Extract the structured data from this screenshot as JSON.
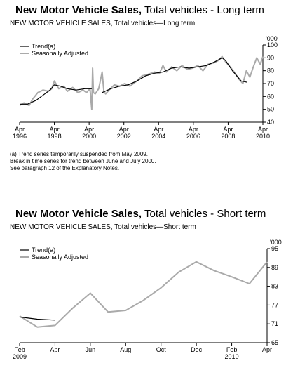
{
  "chart_data": [
    {
      "type": "line",
      "title_bold": "New Motor Vehicle Sales,",
      "title_rest": " Total vehicles - Long term",
      "subtitle": "NEW MOTOR VEHICLE SALES, Total vehicles—Long term",
      "y_unit": "'000",
      "ylim": [
        40,
        100
      ],
      "yticks": [
        40,
        50,
        60,
        70,
        80,
        90,
        100
      ],
      "xlim": [
        1996.25,
        2010.25
      ],
      "xticks": [
        {
          "x": 1996.25,
          "l1": "Apr",
          "l2": "1996"
        },
        {
          "x": 1998.25,
          "l1": "Apr",
          "l2": "1998"
        },
        {
          "x": 2000.25,
          "l1": "Apr",
          "l2": "2000"
        },
        {
          "x": 2002.25,
          "l1": "Apr",
          "l2": "2002"
        },
        {
          "x": 2004.25,
          "l1": "Apr",
          "l2": "2004"
        },
        {
          "x": 2006.25,
          "l1": "Apr",
          "l2": "2006"
        },
        {
          "x": 2008.25,
          "l1": "Apr",
          "l2": "2008"
        },
        {
          "x": 2010.25,
          "l1": "Apr",
          "l2": "2010"
        }
      ],
      "legend": [
        "Trend(a)",
        "Seasonally Adjusted"
      ],
      "colors": {
        "trend": "#000000",
        "seasonal": "#aaaaaa"
      },
      "series": [
        {
          "name": "Trend(a)",
          "x": [
            1996.25,
            1996.7,
            1997.2,
            1997.7,
            1998.0,
            1998.25,
            1998.6,
            1999.0,
            1999.5,
            2000.0,
            2000.4,
            2000.55,
            2001.0,
            2001.5,
            2002.0,
            2002.5,
            2003.0,
            2003.5,
            2004.0,
            2004.5,
            2005.0,
            2005.5,
            2006.0,
            2006.5,
            2007.0,
            2007.5,
            2007.9,
            2008.1,
            2008.5,
            2009.0,
            2009.35
          ],
          "y": [
            54,
            54,
            57,
            62,
            65,
            69,
            68,
            66,
            65,
            66,
            66,
            null,
            63,
            66,
            68,
            69,
            72,
            76,
            78,
            79,
            82,
            83,
            82,
            83,
            84,
            87,
            90,
            88,
            80,
            72,
            71
          ]
        },
        {
          "name": "Seasonally Adjusted",
          "x": [
            1996.25,
            1996.5,
            1996.8,
            1997.0,
            1997.3,
            1997.6,
            1997.9,
            1998.1,
            1998.25,
            1998.5,
            1998.8,
            1999.0,
            1999.3,
            1999.6,
            1999.9,
            2000.1,
            2000.3,
            2000.4,
            2000.45,
            2000.5,
            2000.6,
            2000.8,
            2001.0,
            2001.1,
            2001.2,
            2001.4,
            2001.7,
            2002.0,
            2002.3,
            2002.6,
            2003.0,
            2003.3,
            2003.6,
            2004.0,
            2004.3,
            2004.5,
            2004.7,
            2005.0,
            2005.3,
            2005.6,
            2005.9,
            2006.2,
            2006.5,
            2006.8,
            2007.1,
            2007.4,
            2007.7,
            2007.9,
            2008.1,
            2008.3,
            2008.6,
            2008.9,
            2009.1,
            2009.3,
            2009.5,
            2009.7,
            2009.9,
            2010.1,
            2010.25
          ],
          "y": [
            53,
            55,
            53,
            58,
            63,
            65,
            64,
            66,
            72,
            66,
            68,
            64,
            67,
            63,
            65,
            63,
            66,
            50,
            82,
            63,
            62,
            66,
            79,
            64,
            62,
            65,
            69,
            68,
            70,
            68,
            72,
            76,
            77,
            79,
            78,
            84,
            79,
            83,
            80,
            84,
            81,
            82,
            84,
            80,
            85,
            86,
            88,
            91,
            87,
            84,
            79,
            73,
            70,
            80,
            75,
            83,
            90,
            85,
            91
          ]
        }
      ],
      "notes": [
        "(a) Trend series temporarily suspended from May 2009.",
        "Break in time series for trend between June and July 2000.",
        "See paragraph 12 of the Explanatory Notes."
      ]
    },
    {
      "type": "line",
      "title_bold": "New Motor Vehicle Sales,",
      "title_rest": " Total vehicles - Short term",
      "subtitle": "NEW MOTOR VEHICLE SALES, Total vehicles—Short term",
      "y_unit": "'000",
      "ylim": [
        65,
        95
      ],
      "yticks": [
        65,
        71,
        77,
        83,
        89,
        95
      ],
      "xlim": [
        0,
        14
      ],
      "xticks": [
        {
          "x": 0,
          "l1": "Feb",
          "l2": "2009"
        },
        {
          "x": 2,
          "l1": "Apr",
          "l2": ""
        },
        {
          "x": 4,
          "l1": "Jun",
          "l2": ""
        },
        {
          "x": 6,
          "l1": "Aug",
          "l2": ""
        },
        {
          "x": 8,
          "l1": "Oct",
          "l2": ""
        },
        {
          "x": 10,
          "l1": "Dec",
          "l2": ""
        },
        {
          "x": 12,
          "l1": "Feb",
          "l2": "2010"
        },
        {
          "x": 14,
          "l1": "Apr",
          "l2": ""
        }
      ],
      "legend": [
        "Trend(a)",
        "Seasonally Adjusted"
      ],
      "colors": {
        "trend": "#000000",
        "seasonal": "#aaaaaa"
      },
      "series": [
        {
          "name": "Trend(a)",
          "x": [
            0,
            1,
            2
          ],
          "y": [
            73.2,
            72.5,
            72.2
          ]
        },
        {
          "name": "Seasonally Adjusted",
          "x": [
            0,
            1,
            2,
            3,
            4,
            5,
            6,
            7,
            8,
            9,
            10,
            11,
            12,
            13,
            14
          ],
          "y": [
            73.5,
            70.0,
            70.5,
            76.0,
            80.8,
            74.8,
            75.3,
            78.5,
            82.5,
            87.5,
            90.8,
            88.0,
            86.0,
            83.8,
            90.8
          ]
        }
      ]
    }
  ]
}
